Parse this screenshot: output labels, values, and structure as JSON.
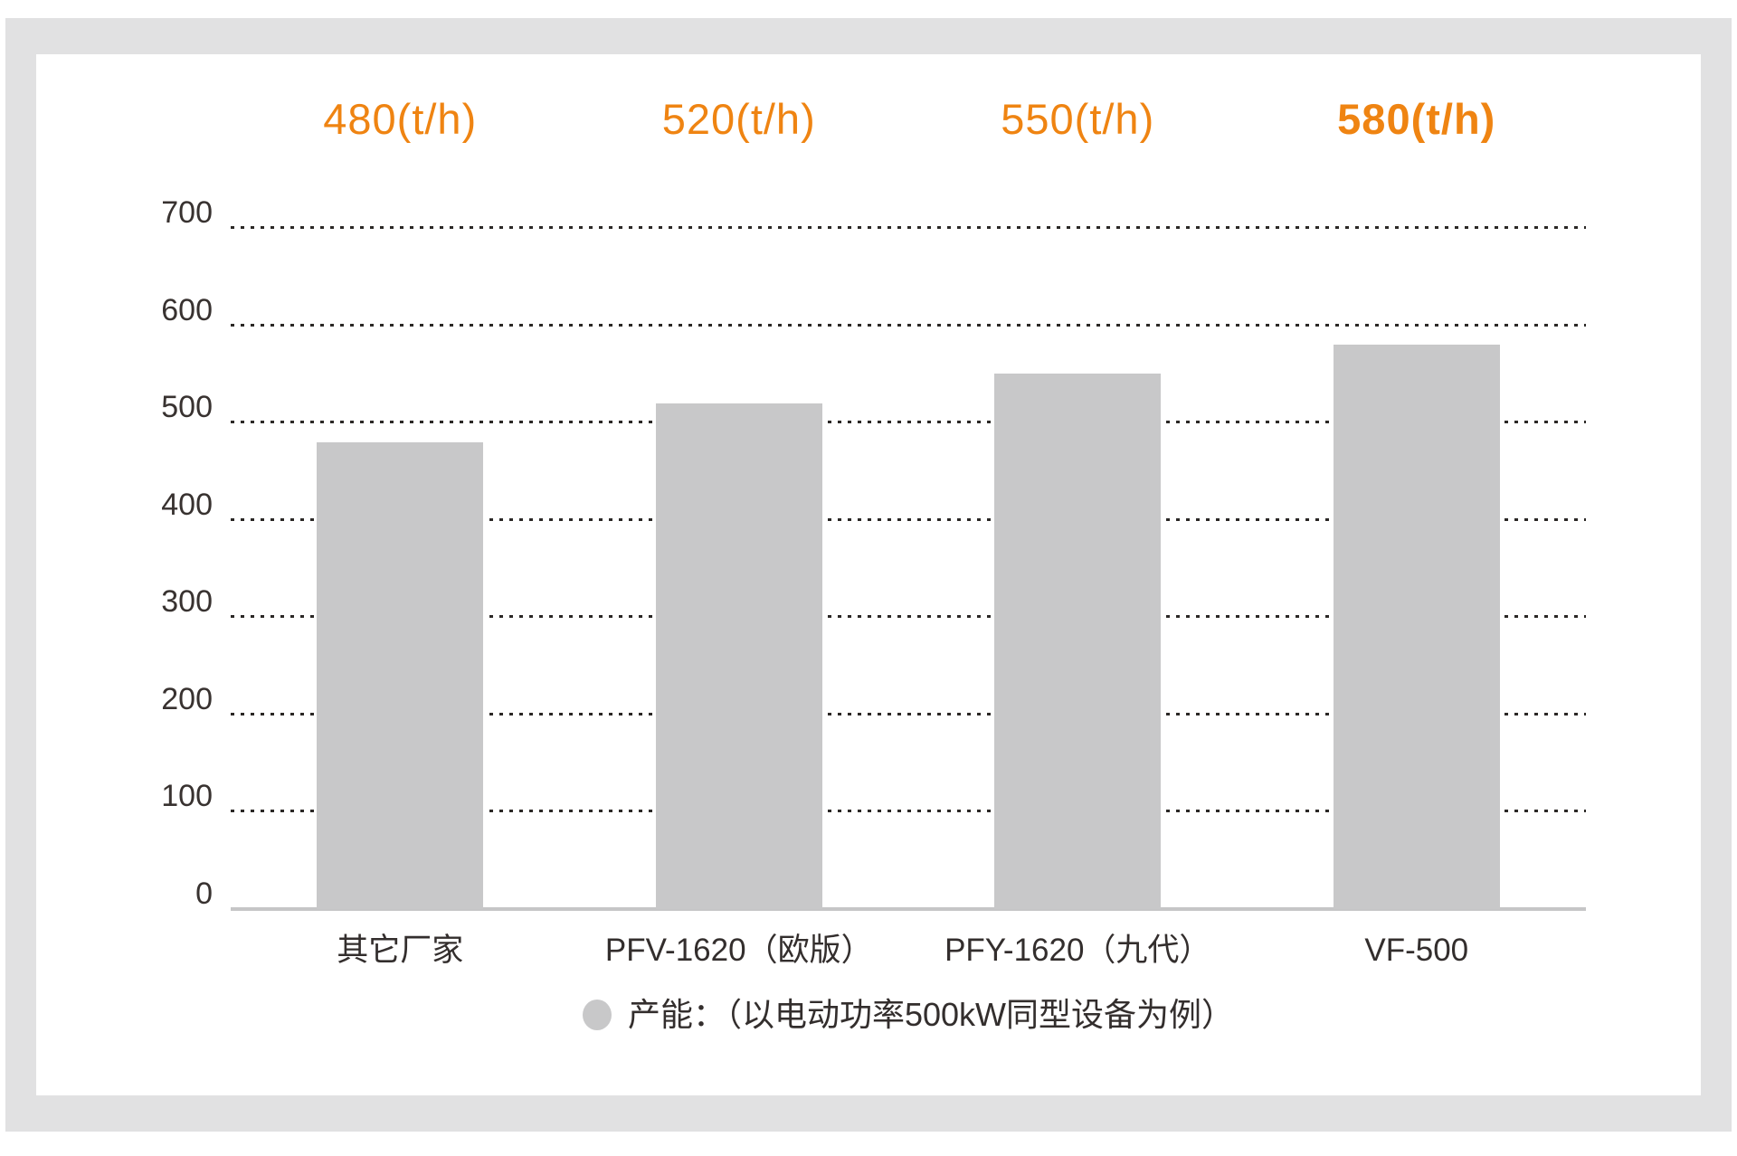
{
  "chart_data": {
    "type": "bar",
    "categories": [
      "其它厂家",
      "PFV-1620（欧版）",
      "PFY-1620（九代）",
      "VF-500"
    ],
    "values": [
      480,
      520,
      550,
      580
    ],
    "value_labels": [
      "480(t/h)",
      "520(t/h)",
      "550(t/h)",
      "580(t/h)"
    ],
    "highlight_index": 3,
    "title": "",
    "xlabel": "",
    "ylabel": "",
    "ylim": [
      0,
      700
    ],
    "yticks": [
      0,
      100,
      200,
      300,
      400,
      500,
      600,
      700
    ],
    "grid": "horizontal-dotted",
    "legend_position": "bottom-center",
    "legend": {
      "marker": "circle",
      "label": "产能：（以电动功率500kW同型设备为例）"
    },
    "colors": {
      "bar": "#c8c8c9",
      "accent_orange": "#ef8412",
      "axis_line": "#c6c6c7",
      "grid_dot": "#2b2826",
      "text_dark": "#383230",
      "frame_gray": "#e1e1e2",
      "background": "#ffffff"
    }
  }
}
